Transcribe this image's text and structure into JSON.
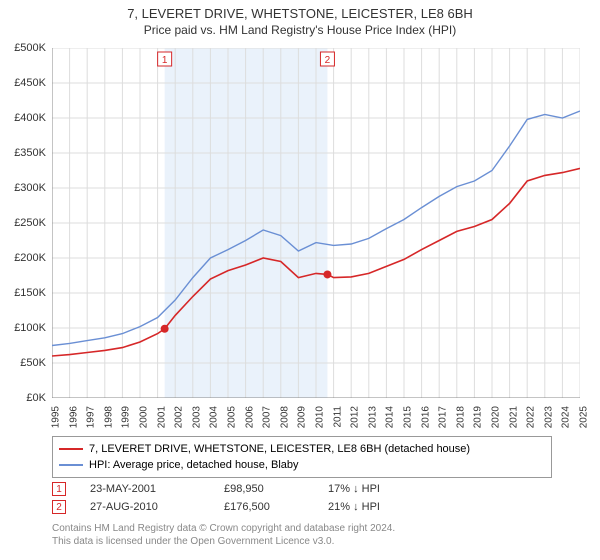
{
  "chart": {
    "type": "line",
    "title": "7, LEVERET DRIVE, WHETSTONE, LEICESTER, LE8 6BH",
    "subtitle": "Price paid vs. HM Land Registry's House Price Index (HPI)",
    "background_color": "#ffffff",
    "grid_color": "#dddddd",
    "axis_color": "#888888",
    "title_fontsize": 13,
    "subtitle_fontsize": 12,
    "label_fontsize": 11,
    "tick_fontsize": 10,
    "x": {
      "years": [
        1995,
        1996,
        1997,
        1998,
        1999,
        2000,
        2001,
        2002,
        2003,
        2004,
        2005,
        2006,
        2007,
        2008,
        2009,
        2010,
        2011,
        2012,
        2013,
        2014,
        2015,
        2016,
        2017,
        2018,
        2019,
        2020,
        2021,
        2022,
        2023,
        2024,
        2025
      ],
      "min": 1995,
      "max": 2025
    },
    "y": {
      "min": 0,
      "max": 500000,
      "step": 50000,
      "prefix": "£",
      "suffix": "K",
      "divisor": 1000
    },
    "shaded_band": {
      "x_start": 2001.4,
      "x_end": 2010.65,
      "fill": "#eaf2fb"
    },
    "series": [
      {
        "id": "price_paid",
        "label": "7, LEVERET DRIVE, WHETSTONE, LEICESTER, LE8 6BH (detached house)",
        "color": "#d62728",
        "width": 1.6,
        "points": [
          [
            1995,
            60000
          ],
          [
            1996,
            62000
          ],
          [
            1997,
            65000
          ],
          [
            1998,
            68000
          ],
          [
            1999,
            72000
          ],
          [
            2000,
            80000
          ],
          [
            2001,
            92000
          ],
          [
            2001.4,
            98950
          ],
          [
            2002,
            118000
          ],
          [
            2003,
            145000
          ],
          [
            2004,
            170000
          ],
          [
            2005,
            182000
          ],
          [
            2006,
            190000
          ],
          [
            2007,
            200000
          ],
          [
            2008,
            195000
          ],
          [
            2009,
            172000
          ],
          [
            2010,
            178000
          ],
          [
            2010.65,
            176500
          ],
          [
            2011,
            172000
          ],
          [
            2012,
            173000
          ],
          [
            2013,
            178000
          ],
          [
            2014,
            188000
          ],
          [
            2015,
            198000
          ],
          [
            2016,
            212000
          ],
          [
            2017,
            225000
          ],
          [
            2018,
            238000
          ],
          [
            2019,
            245000
          ],
          [
            2020,
            255000
          ],
          [
            2021,
            278000
          ],
          [
            2022,
            310000
          ],
          [
            2023,
            318000
          ],
          [
            2024,
            322000
          ],
          [
            2025,
            328000
          ]
        ]
      },
      {
        "id": "hpi",
        "label": "HPI: Average price, detached house, Blaby",
        "color": "#6a8fd4",
        "width": 1.4,
        "points": [
          [
            1995,
            75000
          ],
          [
            1996,
            78000
          ],
          [
            1997,
            82000
          ],
          [
            1998,
            86000
          ],
          [
            1999,
            92000
          ],
          [
            2000,
            102000
          ],
          [
            2001,
            115000
          ],
          [
            2002,
            140000
          ],
          [
            2003,
            172000
          ],
          [
            2004,
            200000
          ],
          [
            2005,
            212000
          ],
          [
            2006,
            225000
          ],
          [
            2007,
            240000
          ],
          [
            2008,
            232000
          ],
          [
            2009,
            210000
          ],
          [
            2010,
            222000
          ],
          [
            2011,
            218000
          ],
          [
            2012,
            220000
          ],
          [
            2013,
            228000
          ],
          [
            2014,
            242000
          ],
          [
            2015,
            255000
          ],
          [
            2016,
            272000
          ],
          [
            2017,
            288000
          ],
          [
            2018,
            302000
          ],
          [
            2019,
            310000
          ],
          [
            2020,
            325000
          ],
          [
            2021,
            360000
          ],
          [
            2022,
            398000
          ],
          [
            2023,
            405000
          ],
          [
            2024,
            400000
          ],
          [
            2025,
            410000
          ]
        ]
      }
    ],
    "sale_markers": [
      {
        "n": "1",
        "x": 2001.4,
        "y": 98950,
        "date": "23-MAY-2001",
        "price": "£98,950",
        "hpi_delta": "17% ↓ HPI",
        "box_color": "#d62728"
      },
      {
        "n": "2",
        "x": 2010.65,
        "y": 176500,
        "date": "27-AUG-2010",
        "price": "£176,500",
        "hpi_delta": "21% ↓ HPI",
        "box_color": "#d62728"
      }
    ],
    "attribution": {
      "line1": "Contains HM Land Registry data © Crown copyright and database right 2024.",
      "line2": "This data is licensed under the Open Government Licence v3.0."
    }
  }
}
